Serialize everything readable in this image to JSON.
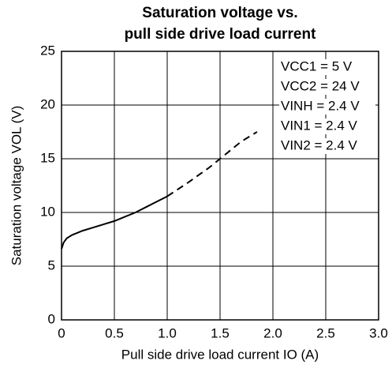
{
  "chart_data": {
    "type": "line",
    "title": [
      "Saturation voltage vs.",
      "pull side drive load current"
    ],
    "x_label": "Pull side drive load current IO (A)",
    "y_label": "Saturation voltage VOL (V)",
    "annotations": [
      "VCC1 = 5 V",
      "VCC2 = 24 V",
      "VINH = 2.4 V",
      "VIN1 = 2.4 V",
      "VIN2 = 2.4 V"
    ],
    "series": [
      {
        "color": "#000000",
        "dashed": false,
        "x": [
          0,
          0.02,
          0.05,
          0.1,
          0.2,
          0.3,
          0.4,
          0.5,
          0.6,
          0.7,
          0.8,
          0.9,
          1.0
        ],
        "values": [
          6.6,
          7.2,
          7.6,
          7.9,
          8.3,
          8.6,
          8.9,
          9.2,
          9.6,
          10.0,
          10.5,
          11.0,
          11.5
        ]
      },
      {
        "color": "#000000",
        "dashed": true,
        "x": [
          1.0,
          1.2,
          1.4,
          1.5,
          1.6,
          1.7,
          1.85
        ],
        "values": [
          11.5,
          12.8,
          14.2,
          15.0,
          15.8,
          16.6,
          17.5
        ]
      }
    ],
    "xlim": [
      0,
      3.0
    ],
    "xticks": [
      0,
      0.5,
      {
        "value": 1,
        "label": "1.0"
      },
      1.5,
      {
        "value": 2,
        "label": "2.0"
      },
      2.5,
      {
        "value": 3,
        "label": "3.0"
      }
    ],
    "ylim": [
      0,
      25
    ],
    "yticks": [
      0,
      5,
      10,
      15,
      20,
      25
    ],
    "grid": true
  }
}
